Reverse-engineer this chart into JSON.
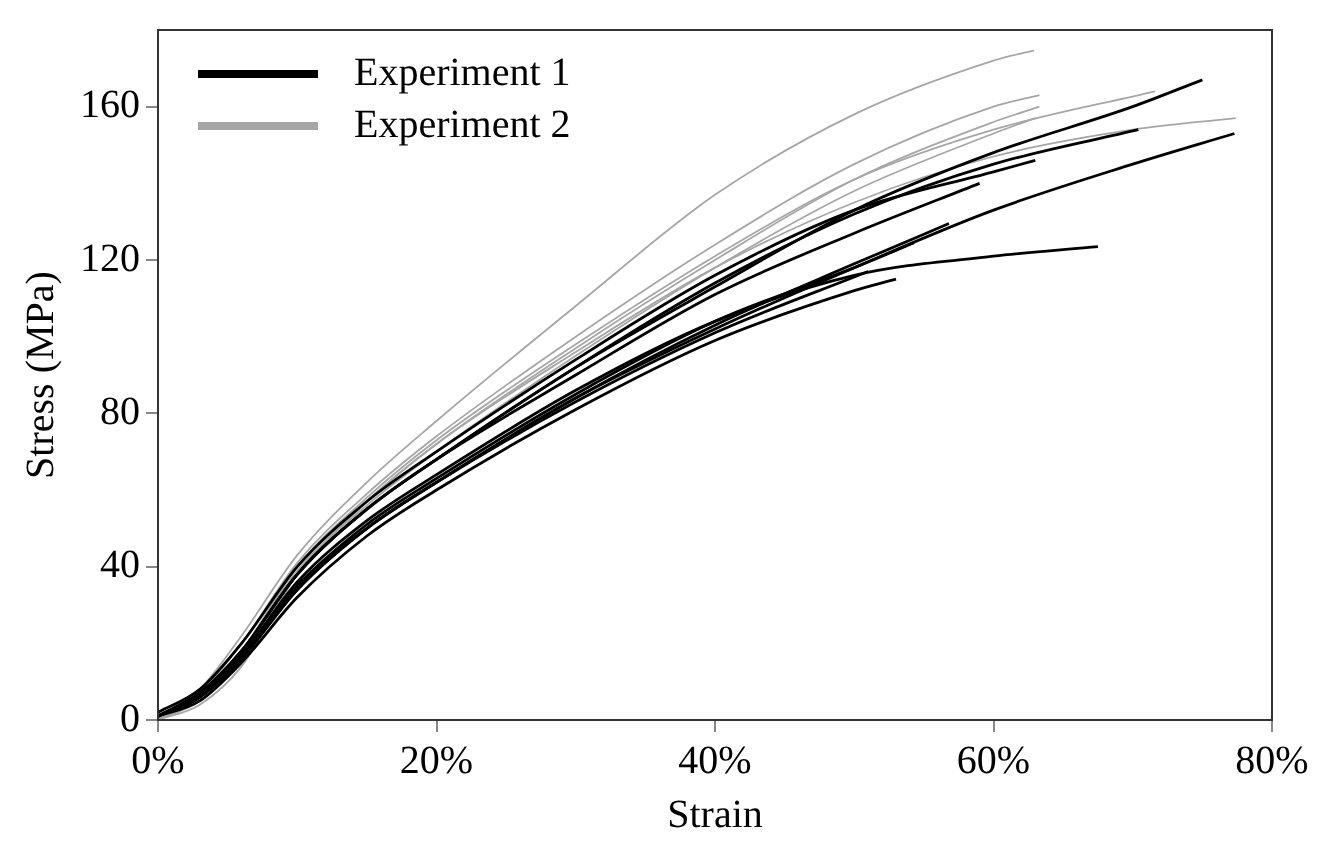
{
  "chart_data": {
    "type": "line",
    "xlabel": "Strain",
    "ylabel": "Stress (MPa)",
    "xlim": [
      0,
      80
    ],
    "xticks": [
      {
        "value": 0,
        "label": "0%"
      },
      {
        "value": 20,
        "label": "20%"
      },
      {
        "value": 40,
        "label": "40%"
      },
      {
        "value": 60,
        "label": "60%"
      },
      {
        "value": 80,
        "label": "80%"
      }
    ],
    "ylim": [
      0,
      180
    ],
    "yticks": [
      0,
      40,
      80,
      120,
      160
    ],
    "grid": false,
    "legend": "top left",
    "line_style": "solid",
    "marker": "none",
    "series": [
      {
        "name": "Experiment 1",
        "color": "#000000",
        "x": [
          0,
          3,
          6,
          10,
          15,
          20,
          30,
          40,
          50,
          60,
          70,
          75
        ],
        "values": [
          1,
          7,
          18,
          38,
          55,
          68,
          92,
          113,
          133,
          148,
          160,
          167
        ]
      },
      {
        "color": "#000000",
        "x": [
          0,
          3,
          6,
          10,
          15,
          20,
          30,
          40,
          50,
          60,
          70,
          77.3
        ],
        "values": [
          1,
          6,
          16,
          34,
          50,
          62,
          84,
          102,
          118,
          133,
          145,
          153
        ]
      },
      {
        "color": "#000000",
        "x": [
          0,
          3,
          6,
          10,
          15,
          20,
          30,
          40,
          50,
          60,
          70.4
        ],
        "values": [
          1,
          7,
          18,
          38,
          55,
          68,
          92,
          114,
          132,
          145,
          154
        ]
      },
      {
        "color": "#000000",
        "x": [
          0,
          3,
          6,
          10,
          15,
          20,
          30,
          40,
          50,
          60,
          63
        ],
        "values": [
          2,
          8,
          20,
          40,
          57,
          70,
          94,
          116,
          133,
          143,
          146
        ]
      },
      {
        "color": "#000000",
        "x": [
          0,
          3,
          6,
          10,
          15,
          20,
          30,
          40,
          50,
          59
        ],
        "values": [
          1,
          7,
          18,
          38,
          55,
          68,
          90,
          111,
          127,
          140
        ]
      },
      {
        "color": "#000000",
        "x": [
          0,
          3,
          6,
          10,
          15,
          20,
          30,
          40,
          50,
          56.8
        ],
        "values": [
          1,
          6,
          16,
          35,
          50,
          62,
          84,
          103,
          119,
          129.5
        ]
      },
      {
        "color": "#000000",
        "x": [
          0,
          3,
          6,
          10,
          15,
          20,
          30,
          40,
          50,
          54.3
        ],
        "values": [
          1,
          6,
          17,
          35,
          51,
          63,
          85,
          104,
          118,
          124.5
        ]
      },
      {
        "color": "#000000",
        "x": [
          0,
          3,
          6,
          10,
          15,
          20,
          30,
          40,
          50,
          60,
          67.5
        ],
        "values": [
          1,
          7,
          17,
          36,
          52,
          64,
          86,
          104,
          116,
          121,
          123.5
        ]
      },
      {
        "color": "#000000",
        "x": [
          0,
          3,
          6,
          10,
          15,
          20,
          30,
          40,
          51
        ],
        "values": [
          1,
          6,
          16,
          34,
          50,
          62,
          83,
          101,
          117
        ]
      },
      {
        "color": "#000000",
        "x": [
          0,
          3,
          6,
          10,
          15,
          20,
          30,
          40,
          50,
          53
        ],
        "values": [
          1,
          5,
          15,
          32,
          48,
          60,
          81,
          99,
          112,
          115
        ]
      },
      {
        "name": "Experiment 2",
        "color": "#a6a6a6",
        "x": [
          0,
          3,
          6,
          10,
          15,
          20,
          30,
          40,
          50,
          60,
          62.9
        ],
        "values": [
          0,
          8,
          22,
          43,
          62,
          78,
          108,
          137,
          158,
          172,
          174.7
        ]
      },
      {
        "color": "#a6a6a6",
        "x": [
          0,
          3,
          6,
          10,
          15,
          20,
          30,
          40,
          50,
          60,
          63.3
        ],
        "values": [
          0,
          7,
          20,
          41,
          59,
          74,
          100,
          124,
          145,
          160,
          163
        ]
      },
      {
        "color": "#a6a6a6",
        "x": [
          0,
          3,
          6,
          10,
          15,
          20,
          30,
          40,
          50,
          60,
          70,
          77.4
        ],
        "values": [
          0,
          5,
          16,
          38,
          57,
          72,
          96,
          118,
          135,
          147,
          154,
          157
        ]
      },
      {
        "color": "#a6a6a6",
        "x": [
          0,
          3,
          6,
          10,
          15,
          20,
          30,
          40,
          50,
          60,
          71.6
        ],
        "values": [
          0,
          6,
          18,
          40,
          58,
          73,
          98,
          121,
          141,
          154,
          164
        ]
      },
      {
        "color": "#a6a6a6",
        "x": [
          0,
          3,
          6,
          10,
          15,
          20,
          30,
          40,
          50,
          60,
          63.3
        ],
        "values": [
          0,
          4,
          14,
          38,
          57,
          72,
          97,
          120,
          141,
          156,
          160
        ]
      },
      {
        "color": "#a6a6a6",
        "x": [
          0,
          3,
          6,
          10,
          15,
          20,
          30,
          40,
          50,
          60,
          63
        ],
        "values": [
          0,
          6,
          18,
          39,
          56,
          70,
          95,
          118,
          138,
          153,
          157
        ]
      }
    ]
  }
}
